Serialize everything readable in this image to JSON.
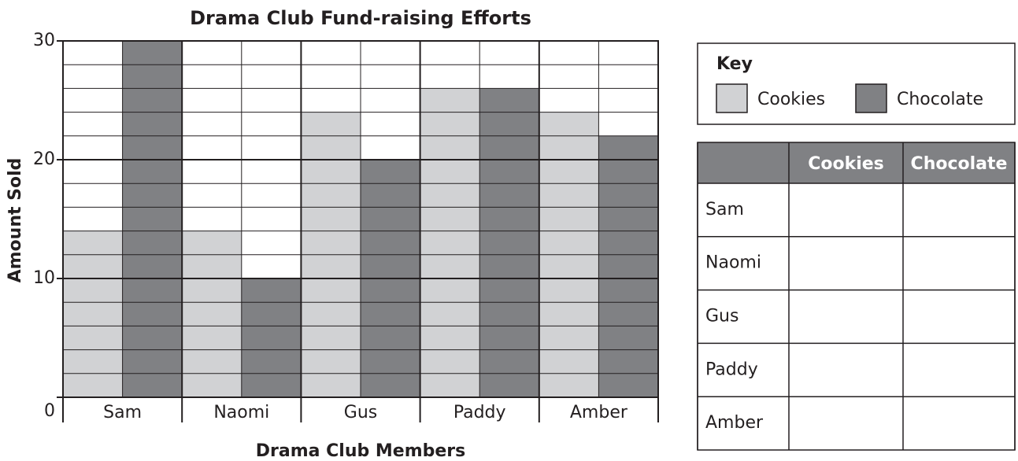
{
  "chart_data": {
    "type": "bar",
    "title": "Drama Club Fund-raising Efforts",
    "x_label": "Drama Club Members",
    "y_label": "Amount Sold",
    "categories": [
      "Sam",
      "Naomi",
      "Gus",
      "Paddy",
      "Amber"
    ],
    "series": [
      {
        "name": "Cookies",
        "color": "#d1d2d4",
        "values": [
          14,
          14,
          24,
          26,
          24
        ]
      },
      {
        "name": "Chocolate",
        "color": "#808184",
        "values": [
          30,
          10,
          20,
          26,
          22
        ]
      }
    ],
    "ylim": [
      0,
      30
    ],
    "yticks": [
      0,
      10,
      20,
      30
    ],
    "minor_yticks": [
      2,
      4,
      6,
      8,
      12,
      14,
      16,
      18,
      22,
      24,
      26,
      28
    ],
    "grid": true,
    "key_title": "Key"
  },
  "table": {
    "columns": [
      "Cookies",
      "Chocolate"
    ],
    "rows": [
      "Sam",
      "Naomi",
      "Gus",
      "Paddy",
      "Amber"
    ],
    "header_color": "#808184"
  }
}
